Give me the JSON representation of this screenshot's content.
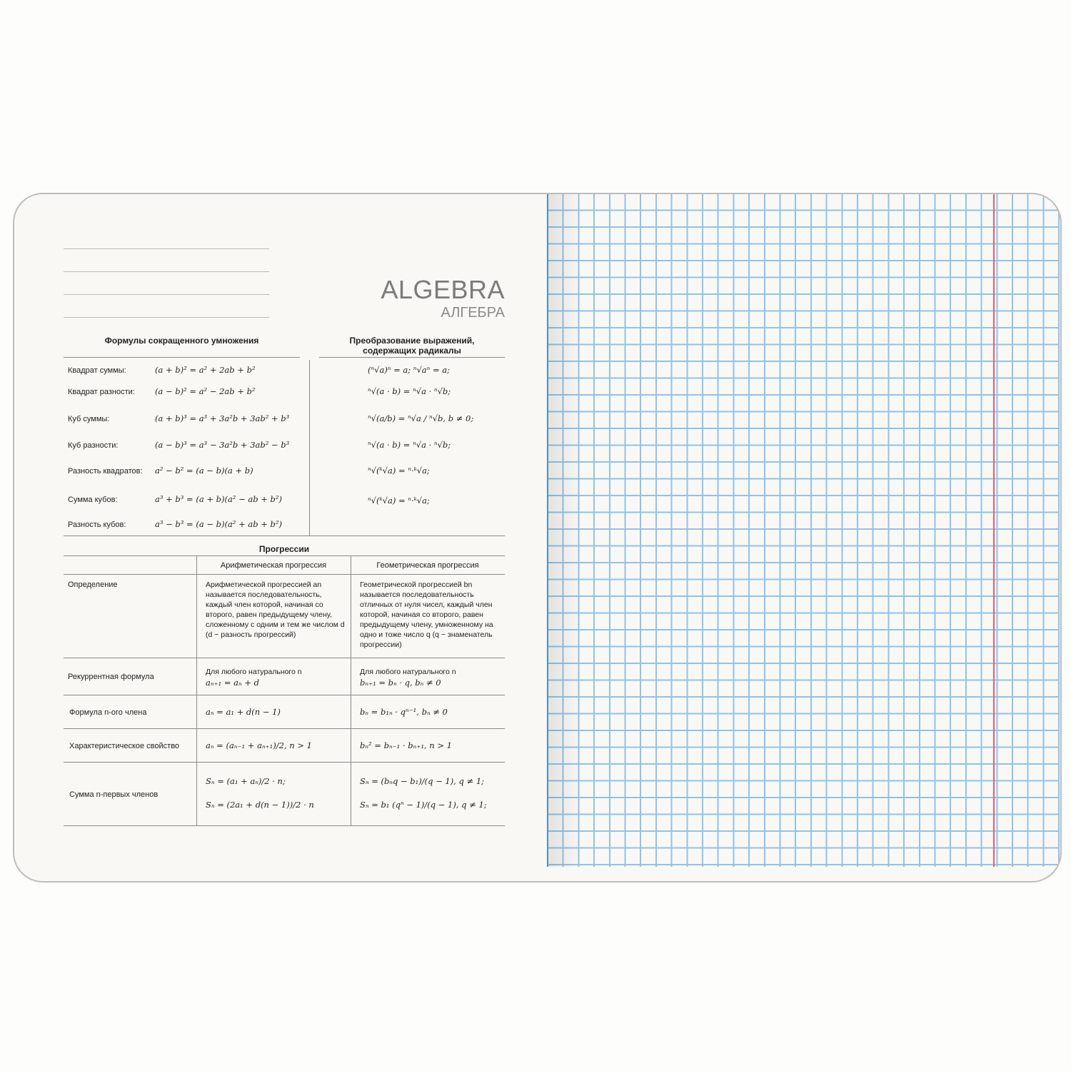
{
  "title": {
    "en": "ALGEBRA",
    "ru": "АЛГЕБРА"
  },
  "colors": {
    "grid": "#8fc3ea",
    "margin": "#ec5b6a",
    "title": "#7b7b7b"
  },
  "formulas": {
    "heading": "Формулы сокращенного умножения",
    "rows": [
      {
        "label": "Квадрат суммы:",
        "formula": "(a + b)² = a² + 2ab + b²"
      },
      {
        "label": "Квадрат разности:",
        "formula": "(a − b)² = a² − 2ab + b²"
      },
      {
        "label": "Куб суммы:",
        "formula": "(a + b)³ =  a³ + 3a²b + 3ab² + b³"
      },
      {
        "label": "Куб разности:",
        "formula": "(a − b)³ = a³ − 3a²b + 3ab² − b³"
      },
      {
        "label": "Разность квадратов:",
        "formula": "a² − b² = (a − b)(a + b)"
      },
      {
        "label": "Сумма кубов:",
        "formula": "a³ + b³ = (a + b)(a² − ab + b²)"
      },
      {
        "label": "Разность кубов:",
        "formula": "a³ − b³ = (a − b)(a² + ab + b²)"
      }
    ]
  },
  "radicals": {
    "heading_line1": "Преобразование выражений,",
    "heading_line2": "содержащих радикалы",
    "rows": [
      "(ⁿ√a)ⁿ = a;  ⁿ√aⁿ = a;",
      "ⁿ√(a · b) = ⁿ√a · ⁿ√b;",
      "ⁿ√(a/b) = ⁿ√a / ⁿ√b, b ≠ 0;",
      "ⁿ√(a · b) = ⁿ√a · ⁿ√b;",
      "ⁿ√(ᵏ√a) = ⁿ·ᵏ√a;",
      "ⁿ√(ᵏ√a) = ⁿ·ᵏ√a;"
    ]
  },
  "progressions": {
    "heading": "Прогрессии",
    "columns": [
      "",
      "Арифметическая прогрессия",
      "Геометрическая прогрессия"
    ],
    "rows": [
      {
        "label": "Определение",
        "arith": "Арифметической прогрессией an называется последовательность, каждый член которой, начиная со второго, равен предыдущему члену, сложенному с одним и тем же числом d (d − разность прогрессий)",
        "geom": "Геометрической прогрессией bn называется последовательность отличных от нуля чисел, каждый член которой, начиная со второго, равен предыдущему члену, умноженному на одно и тоже число q (q − знаменатель прогрессии)"
      },
      {
        "label": "Рекуррентная формула",
        "arith": "Для любого натурального n",
        "arith2": "aₙ₊₁ = aₙ + d",
        "geom": "Для любого натурального n",
        "geom2": "bₙ₊₁ = bₙ · q, bₙ ≠ 0"
      },
      {
        "label": "Формула n-ого члена",
        "arith": "aₙ = a₁ + d(n − 1)",
        "geom": "bₙ = b₁ₙ · qⁿ⁻¹, bₙ ≠ 0"
      },
      {
        "label": "Характеристическое свойство",
        "arith": "aₙ = (aₙ₋₁ + aₙ₊₁)/2, n > 1",
        "geom": "bₙ² = bₙ₋₁ · bₙ₊₁, n > 1"
      },
      {
        "label": "Сумма n-первых членов",
        "arith": "Sₙ = (a₁ + aₙ)/2 · n;",
        "arith2": "Sₙ = (2a₁ + d(n − 1))/2 · n",
        "geom": "Sₙ = (bₙq − b₁)/(q − 1), q ≠ 1;",
        "geom2": "Sₙ = b₁ (qⁿ − 1)/(q − 1), q ≠ 1;"
      }
    ]
  }
}
